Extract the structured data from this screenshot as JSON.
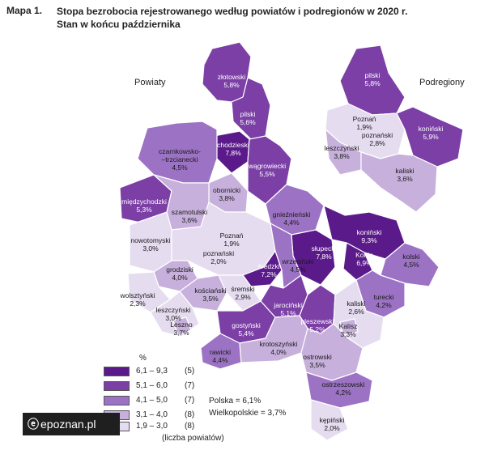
{
  "header": {
    "map_label": "Mapa 1.",
    "title_line1": "Stopa bezrobocia rejestrowanego według powiatów i podregionów w 2020 r.",
    "title_line2": "Stan w końcu października"
  },
  "sections": {
    "powiaty": "Powiaty",
    "podregiony": "Podregiony"
  },
  "colors": {
    "c1": "#5b1a8a",
    "c2": "#7b3fa6",
    "c3": "#9c73c4",
    "c4": "#c7b0dc",
    "c5": "#e6dcf0",
    "border": "#ffffff"
  },
  "powiaty": [
    {
      "name": "złotowski",
      "value": "5,8%"
    },
    {
      "name": "pilski",
      "value": "5,6%"
    },
    {
      "name": "chodzieski",
      "value": "7,8%"
    },
    {
      "name": "czarnkowsko-\n–trzcianecki",
      "value": "4,5%"
    },
    {
      "name": "wągrowiecki",
      "value": "5,5%"
    },
    {
      "name": "obornicki",
      "value": "3,8%"
    },
    {
      "name": "międzychodzki",
      "value": "5,3%"
    },
    {
      "name": "szamotulski",
      "value": "3,6%"
    },
    {
      "name": "gnieźnieński",
      "value": "4,4%"
    },
    {
      "name": "Poznań",
      "value": "1,9%"
    },
    {
      "name": "nowotomyski",
      "value": "3,0%"
    },
    {
      "name": "poznański",
      "value": "2,0%"
    },
    {
      "name": "koniński",
      "value": "9,3%"
    },
    {
      "name": "słupecki",
      "value": "7,8%"
    },
    {
      "name": "średzki",
      "value": "7,2%"
    },
    {
      "name": "wrzesiński",
      "value": "4,5%"
    },
    {
      "name": "Konin",
      "value": "6,9%"
    },
    {
      "name": "kolski",
      "value": "4,5%"
    },
    {
      "name": "grodziski",
      "value": "4,0%"
    },
    {
      "name": "kościański",
      "value": "3,5%"
    },
    {
      "name": "śremski",
      "value": "2,9%"
    },
    {
      "name": "wolsztyński",
      "value": "2,3%"
    },
    {
      "name": "jarociński",
      "value": "5,1%"
    },
    {
      "name": "turecki",
      "value": "4,2%"
    },
    {
      "name": "leszczyński",
      "value": "3,0%"
    },
    {
      "name": "Leszno",
      "value": "3,7%"
    },
    {
      "name": "gostyński",
      "value": "5,4%"
    },
    {
      "name": "pleszewski",
      "value": "5,2%"
    },
    {
      "name": "kaliski",
      "value": "2,6%"
    },
    {
      "name": "Kalisz",
      "value": "3,3%"
    },
    {
      "name": "rawicki",
      "value": "4,4%"
    },
    {
      "name": "krotoszyński",
      "value": "4,0%"
    },
    {
      "name": "ostrowski",
      "value": "3,5%"
    },
    {
      "name": "ostrzeszowski",
      "value": "4,2%"
    },
    {
      "name": "kępiński",
      "value": "2,0%"
    }
  ],
  "podregiony": [
    {
      "name": "pilski",
      "value": "5,8%"
    },
    {
      "name": "Poznań",
      "value": "1,9%"
    },
    {
      "name": "poznański",
      "value": "2,8%"
    },
    {
      "name": "leszczyński",
      "value": "3,8%"
    },
    {
      "name": "koniński",
      "value": "5,9%"
    },
    {
      "name": "kaliski",
      "value": "3,6%"
    }
  ],
  "legend": {
    "unit": "%",
    "items": [
      {
        "range": "6,1 – 9,3",
        "count": "(5)",
        "color": "#5b1a8a"
      },
      {
        "range": "5,1 – 6,0",
        "count": "(7)",
        "color": "#7b3fa6"
      },
      {
        "range": "4,1 – 5,0",
        "count": "(7)",
        "color": "#9c73c4"
      },
      {
        "range": "3,1 – 4,0",
        "count": "(8)",
        "color": "#c7b0dc"
      },
      {
        "range": "1,9 – 3,0",
        "count": "(8)",
        "color": "#e6dcf0"
      }
    ],
    "note": "(liczba powiatów)"
  },
  "stats": {
    "polska": "Polska = 6,1%",
    "wielkopolskie": "Wielkopolskie = 3,7%"
  },
  "watermark": {
    "text": "epoznan.pl"
  }
}
